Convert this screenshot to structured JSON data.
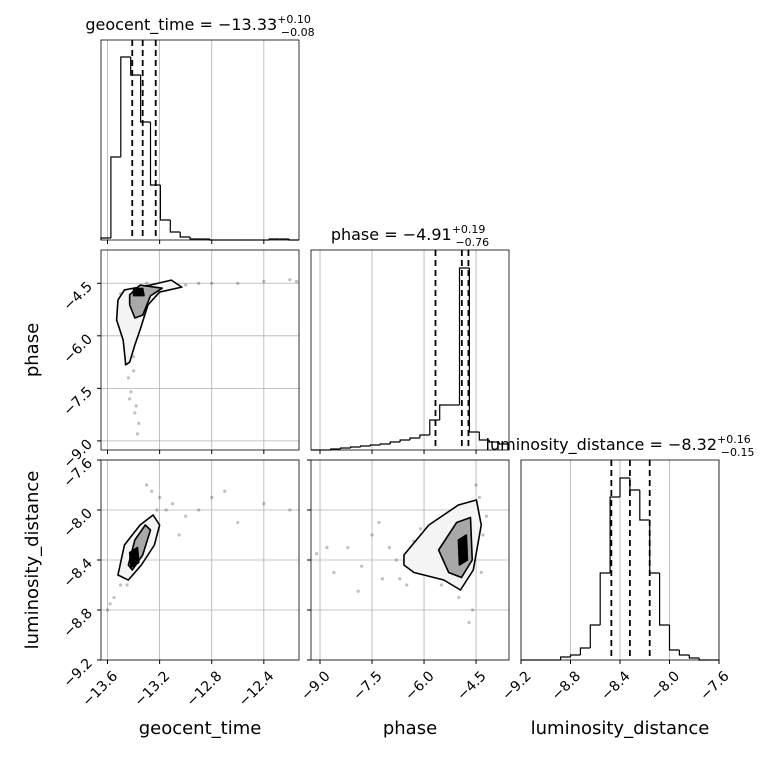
{
  "chart_data": {
    "type": "corner",
    "grid": true,
    "point_color": "#000000",
    "line_color": "#000000",
    "parameters": [
      {
        "label": "geocent_time",
        "lim": [
          -13.65,
          -12.13
        ],
        "ticks": [
          {
            "value": -13.6,
            "label": "−13.6"
          },
          {
            "value": -13.2,
            "label": "−13.2"
          },
          {
            "value": -12.8,
            "label": "−12.8"
          },
          {
            "value": -12.4,
            "label": "−12.4"
          }
        ]
      },
      {
        "label": "phase",
        "lim": [
          -9.26,
          -3.55
        ],
        "ticks": [
          {
            "value": -9.0,
            "label": "−9.0"
          },
          {
            "value": -7.5,
            "label": "−7.5"
          },
          {
            "value": -6.0,
            "label": "−6.0"
          },
          {
            "value": -4.5,
            "label": "−4.5"
          }
        ]
      },
      {
        "label": "luminosity_distance",
        "lim": [
          -9.2,
          -7.6
        ],
        "ticks": [
          {
            "value": -9.2,
            "label": "−9.2"
          },
          {
            "value": -8.8,
            "label": "−8.8"
          },
          {
            "value": -8.4,
            "label": "−8.4"
          },
          {
            "value": -8.0,
            "label": "−8.0"
          },
          {
            "value": -7.6,
            "label": "−7.6"
          }
        ]
      }
    ],
    "diagonal": [
      {
        "title": "geocent_time = −13.33",
        "title_upper": "+0.10",
        "title_lower": "−0.08",
        "bins": [
          -13.65,
          -13.574,
          -13.498,
          -13.422,
          -13.346,
          -13.27,
          -13.194,
          -13.118,
          -13.042,
          -12.966,
          -12.89,
          -12.814,
          -12.738,
          -12.662,
          -12.586,
          -12.51,
          -12.434,
          -12.358,
          -12.282,
          -12.206,
          -12.13
        ],
        "counts": [
          2,
          83,
          183,
          165,
          118,
          55,
          20,
          8,
          3,
          1,
          1,
          0,
          0,
          0,
          0,
          0,
          0,
          1,
          1,
          0
        ],
        "ylim": [
          0,
          200
        ],
        "quantiles": [
          -13.41,
          -13.33,
          -13.23
        ]
      },
      {
        "title": "phase = −4.91",
        "title_upper": "+0.19",
        "title_lower": "−0.76",
        "bins": [
          -9.26,
          -8.9745,
          -8.689,
          -8.4035,
          -8.118,
          -7.8325,
          -7.547,
          -7.2615,
          -6.976,
          -6.6905,
          -6.405,
          -6.1195,
          -5.834,
          -5.5485,
          -5.263,
          -4.9775,
          -4.692,
          -4.4065,
          -4.121,
          -3.8355,
          -3.55
        ],
        "counts": [
          0,
          0,
          1,
          2,
          3,
          4,
          5,
          6,
          8,
          10,
          12,
          15,
          30,
          45,
          45,
          182,
          18,
          10,
          8,
          6
        ],
        "ylim": [
          0,
          200
        ],
        "quantiles": [
          -5.67,
          -4.91,
          -4.72
        ]
      },
      {
        "title": "luminosity_distance = −8.32",
        "title_upper": "+0.16",
        "title_lower": "−0.15",
        "bins": [
          -9.2,
          -9.12,
          -9.04,
          -8.96,
          -8.88,
          -8.8,
          -8.72,
          -8.64,
          -8.56,
          -8.48,
          -8.4,
          -8.32,
          -8.24,
          -8.16,
          -8.08,
          -8.0,
          -7.92,
          -7.84,
          -7.76,
          -7.68,
          -7.6
        ],
        "counts": [
          0,
          0,
          0,
          0,
          3,
          5,
          12,
          35,
          87,
          163,
          182,
          170,
          140,
          87,
          35,
          10,
          5,
          2,
          0,
          0
        ],
        "ylim": [
          0,
          200
        ],
        "quantiles": [
          -8.47,
          -8.32,
          -8.16
        ]
      }
    ],
    "pairs": [
      {
        "x": [
          -13.5,
          -13.45,
          -13.4,
          -13.42,
          -13.38,
          -13.36,
          -13.47,
          -13.4,
          -13.33,
          -13.44,
          -13.39,
          -13.41,
          -13.35,
          -13.5,
          -13.3,
          -13.2,
          -13.0,
          -12.8,
          -12.6,
          -12.4,
          -12.2,
          -12.15,
          -13.1,
          -12.9,
          -13.43,
          -13.37,
          -13.46,
          -13.3,
          -13.25,
          -13.52
        ],
        "y": [
          -5.0,
          -6.2,
          -7.0,
          -7.6,
          -8.0,
          -8.5,
          -5.5,
          -6.6,
          -4.7,
          -7.2,
          -8.2,
          -6.0,
          -4.6,
          -4.8,
          -4.5,
          -4.6,
          -4.55,
          -4.5,
          -4.5,
          -4.45,
          -4.4,
          -4.45,
          -4.5,
          -4.5,
          -7.8,
          -8.8,
          -6.8,
          -5.2,
          -4.7,
          -5.3
        ],
        "contours": [
          {
            "fill": "#f4f4f4",
            "x": [
              -13.52,
              -13.47,
              -13.27,
              -13.11,
              -13.03,
              -13.2,
              -13.29,
              -13.35,
              -13.39,
              -13.43,
              -13.46,
              -13.48,
              -13.53
            ],
            "y": [
              -4.98,
              -4.69,
              -4.55,
              -4.41,
              -4.61,
              -4.75,
              -5.12,
              -5.83,
              -6.26,
              -6.75,
              -6.83,
              -6.12,
              -5.55
            ]
          },
          {
            "fill": "#a8a8a8",
            "x": [
              -13.43,
              -13.35,
              -13.18,
              -13.27,
              -13.33,
              -13.39,
              -13.43
            ],
            "y": [
              -4.83,
              -4.55,
              -4.64,
              -4.86,
              -5.41,
              -5.49,
              -5.12
            ]
          },
          {
            "fill": "#000000",
            "x": [
              -13.4,
              -13.33,
              -13.32,
              -13.4
            ],
            "y": [
              -4.65,
              -4.65,
              -4.85,
              -4.85
            ]
          }
        ]
      },
      {
        "x": [
          -13.55,
          -13.5,
          -13.48,
          -13.45,
          -13.42,
          -13.4,
          -13.38,
          -13.35,
          -13.32,
          -13.3,
          -13.28,
          -13.25,
          -13.22,
          -13.2,
          -13.15,
          -13.1,
          -13.0,
          -12.9,
          -12.8,
          -12.6,
          -12.4,
          -12.2,
          -13.6,
          -13.58,
          -13.3,
          -13.26,
          -13.45,
          -13.35,
          -13.05,
          -12.7
        ],
        "y": [
          -8.7,
          -8.6,
          -8.5,
          -8.55,
          -8.4,
          -8.45,
          -8.3,
          -8.35,
          -8.2,
          -8.25,
          -8.1,
          -8.15,
          -8.0,
          -7.9,
          -8.0,
          -7.95,
          -8.05,
          -8.0,
          -7.9,
          -8.1,
          -7.95,
          -8.0,
          -8.8,
          -8.75,
          -7.8,
          -7.85,
          -8.6,
          -8.2,
          -8.2,
          -7.85
        ],
        "contours": [
          {
            "fill": "#f4f4f4",
            "x": [
              -13.52,
              -13.47,
              -13.35,
              -13.25,
              -13.2,
              -13.24,
              -13.34,
              -13.44
            ],
            "y": [
              -8.52,
              -8.28,
              -8.12,
              -8.04,
              -8.12,
              -8.28,
              -8.44,
              -8.56
            ]
          },
          {
            "fill": "#a8a8a8",
            "x": [
              -13.44,
              -13.39,
              -13.31,
              -13.27,
              -13.33,
              -13.41
            ],
            "y": [
              -8.44,
              -8.24,
              -8.12,
              -8.16,
              -8.36,
              -8.48
            ]
          },
          {
            "fill": "#000000",
            "x": [
              -13.43,
              -13.37,
              -13.36,
              -13.42
            ],
            "y": [
              -8.34,
              -8.3,
              -8.42,
              -8.46
            ]
          }
        ]
      },
      {
        "x": [
          -9.1,
          -8.6,
          -8.2,
          -7.8,
          -7.5,
          -7.2,
          -7.0,
          -6.8,
          -6.5,
          -6.3,
          -6.0,
          -5.8,
          -5.5,
          -5.2,
          -5.0,
          -4.8,
          -4.6,
          -4.4,
          -4.3,
          -4.2,
          -8.8,
          -7.9,
          -7.3,
          -6.7,
          -6.1,
          -5.6,
          -5.1,
          -4.7,
          -4.5,
          -4.35
        ],
        "y": [
          -8.35,
          -8.5,
          -8.3,
          -8.45,
          -8.2,
          -8.55,
          -8.3,
          -8.4,
          -8.6,
          -8.25,
          -8.5,
          -8.2,
          -8.6,
          -8.1,
          -8.7,
          -8.0,
          -8.8,
          -7.9,
          -8.2,
          -8.05,
          -8.3,
          -8.65,
          -8.1,
          -8.55,
          -8.15,
          -8.35,
          -8.25,
          -8.9,
          -7.8,
          -8.5
        ],
        "contours": [
          {
            "fill": "#f4f4f4",
            "x": [
              -6.58,
              -5.86,
              -5.01,
              -4.49,
              -4.35,
              -4.58,
              -4.95,
              -5.43,
              -6.29,
              -6.58
            ],
            "y": [
              -8.36,
              -8.12,
              -7.96,
              -7.92,
              -8.12,
              -8.48,
              -8.64,
              -8.56,
              -8.5,
              -8.44
            ]
          },
          {
            "fill": "#a8a8a8",
            "x": [
              -5.58,
              -5.06,
              -4.66,
              -4.61,
              -4.92,
              -5.29
            ],
            "y": [
              -8.32,
              -8.1,
              -8.06,
              -8.4,
              -8.54,
              -8.5
            ]
          },
          {
            "fill": "#000000",
            "x": [
              -5.01,
              -4.78,
              -4.75,
              -4.98
            ],
            "y": [
              -8.24,
              -8.2,
              -8.4,
              -8.44
            ]
          }
        ]
      }
    ]
  }
}
